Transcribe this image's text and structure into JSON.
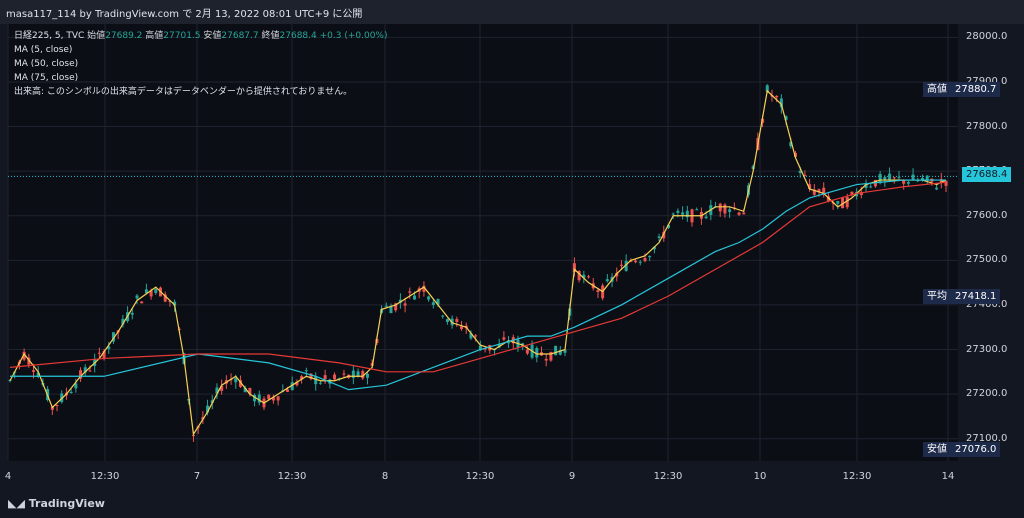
{
  "header": {
    "text": "masa117_114 by TradingView.com で 2月 13, 2022 08:01 UTC+9 に公開"
  },
  "legend": {
    "symbol": "日経225, 5, TVC",
    "open_label": "始値",
    "open": "27689.2",
    "high_label": "高値",
    "high": "27701.5",
    "low_label": "安値",
    "low": "27687.7",
    "close_label": "終値",
    "close": "27688.4",
    "change": "+0.3 (+0.00%)",
    "ma1": "MA (5, close)",
    "ma2": "MA (50, close)",
    "ma3": "MA (75, close)",
    "note": "出来高: このシンボルの出来高データはデータベンダーから提供されておりません。"
  },
  "price_tags": [
    {
      "name": "高値",
      "value": "27880.7",
      "color": "#1e2a4a"
    },
    {
      "name": "",
      "value": "27688.4",
      "color": "#26c6da"
    },
    {
      "name": "平均",
      "value": "27418.1",
      "color": "#1e2a4a"
    },
    {
      "name": "安値",
      "value": "27076.0",
      "color": "#1e2a4a"
    }
  ],
  "footer": {
    "brand": "TradingView"
  },
  "colors": {
    "up": "#26a69a",
    "down": "#ef5350",
    "ma5": "#f7d154",
    "ma50": "#26c6da",
    "ma75": "#e53935"
  },
  "chart_data": {
    "type": "candlestick",
    "y_ticks": [
      "28000.0",
      "27900.0",
      "27800.0",
      "27700.0",
      "27600.0",
      "27500.0",
      "27400.0",
      "27300.0",
      "27200.0",
      "27100.0"
    ],
    "x_ticks": [
      "4",
      "12:30",
      "7",
      "12:30",
      "8",
      "12:30",
      "9",
      "12:30",
      "10",
      "12:30",
      "14"
    ],
    "ylim": [
      27050,
      28030
    ],
    "series": [
      {
        "name": "MA (5, close)",
        "points": [
          [
            0,
            27230
          ],
          [
            3,
            27290
          ],
          [
            6,
            27250
          ],
          [
            9,
            27170
          ],
          [
            12,
            27200
          ],
          [
            15,
            27240
          ],
          [
            19,
            27280
          ],
          [
            23,
            27340
          ],
          [
            27,
            27410
          ],
          [
            31,
            27440
          ],
          [
            33,
            27420
          ],
          [
            35,
            27400
          ],
          [
            37,
            27280
          ],
          [
            39,
            27110
          ],
          [
            42,
            27160
          ],
          [
            45,
            27220
          ],
          [
            48,
            27240
          ],
          [
            51,
            27200
          ],
          [
            54,
            27180
          ],
          [
            57,
            27200
          ],
          [
            60,
            27220
          ],
          [
            63,
            27240
          ],
          [
            66,
            27230
          ],
          [
            69,
            27230
          ],
          [
            72,
            27240
          ],
          [
            75,
            27240
          ],
          [
            77,
            27260
          ],
          [
            79,
            27390
          ],
          [
            82,
            27400
          ],
          [
            85,
            27420
          ],
          [
            88,
            27440
          ],
          [
            91,
            27400
          ],
          [
            94,
            27360
          ],
          [
            97,
            27350
          ],
          [
            100,
            27310
          ],
          [
            103,
            27300
          ],
          [
            106,
            27320
          ],
          [
            109,
            27310
          ],
          [
            112,
            27290
          ],
          [
            115,
            27290
          ],
          [
            118,
            27300
          ],
          [
            120,
            27480
          ],
          [
            123,
            27450
          ],
          [
            126,
            27430
          ],
          [
            129,
            27470
          ],
          [
            132,
            27500
          ],
          [
            135,
            27510
          ],
          [
            138,
            27540
          ],
          [
            141,
            27600
          ],
          [
            144,
            27600
          ],
          [
            147,
            27600
          ],
          [
            150,
            27620
          ],
          [
            153,
            27620
          ],
          [
            156,
            27610
          ],
          [
            158,
            27700
          ],
          [
            161,
            27880
          ],
          [
            164,
            27850
          ],
          [
            167,
            27730
          ],
          [
            170,
            27660
          ],
          [
            173,
            27650
          ],
          [
            176,
            27620
          ],
          [
            179,
            27640
          ],
          [
            182,
            27670
          ],
          [
            185,
            27680
          ],
          [
            188,
            27680
          ],
          [
            191,
            27680
          ],
          [
            194,
            27680
          ],
          [
            197,
            27670
          ],
          [
            199,
            27680
          ]
        ]
      },
      {
        "name": "MA (50, close)",
        "points": [
          [
            0,
            27240
          ],
          [
            20,
            27240
          ],
          [
            40,
            27290
          ],
          [
            55,
            27270
          ],
          [
            65,
            27240
          ],
          [
            72,
            27210
          ],
          [
            80,
            27220
          ],
          [
            90,
            27260
          ],
          [
            100,
            27300
          ],
          [
            110,
            27330
          ],
          [
            115,
            27330
          ],
          [
            120,
            27350
          ],
          [
            130,
            27400
          ],
          [
            140,
            27460
          ],
          [
            150,
            27520
          ],
          [
            155,
            27540
          ],
          [
            160,
            27570
          ],
          [
            165,
            27610
          ],
          [
            170,
            27640
          ],
          [
            180,
            27670
          ],
          [
            190,
            27680
          ],
          [
            199,
            27680
          ]
        ]
      },
      {
        "name": "MA (75, close)",
        "points": [
          [
            0,
            27260
          ],
          [
            20,
            27280
          ],
          [
            40,
            27290
          ],
          [
            55,
            27290
          ],
          [
            70,
            27270
          ],
          [
            80,
            27250
          ],
          [
            90,
            27250
          ],
          [
            100,
            27280
          ],
          [
            110,
            27310
          ],
          [
            120,
            27340
          ],
          [
            130,
            27370
          ],
          [
            140,
            27420
          ],
          [
            150,
            27480
          ],
          [
            160,
            27540
          ],
          [
            165,
            27580
          ],
          [
            170,
            27620
          ],
          [
            180,
            27650
          ],
          [
            190,
            27665
          ],
          [
            199,
            27675
          ]
        ]
      }
    ]
  }
}
